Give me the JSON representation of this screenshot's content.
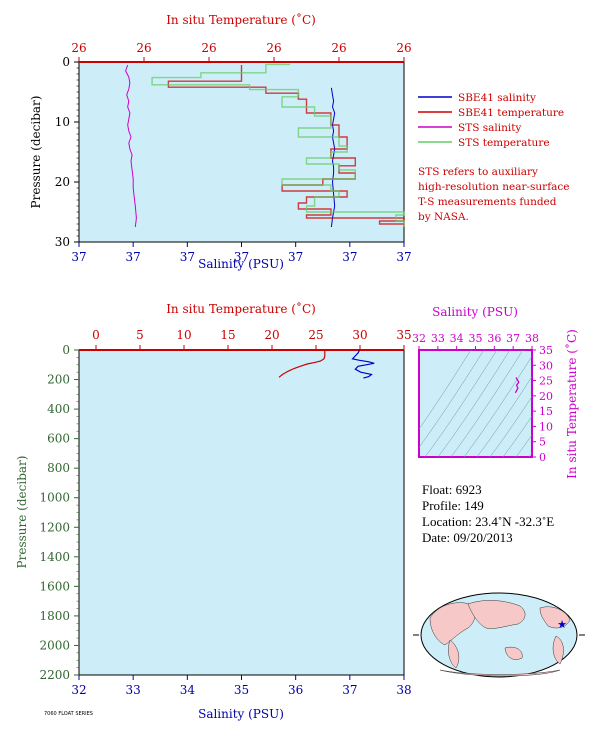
{
  "chart_data": [
    {
      "type": "line",
      "panel": "upper-profile",
      "top_axis": {
        "label": "In situ Temperature (˚C)",
        "ticks": [
          "26",
          "26",
          "26",
          "26",
          "26",
          "26"
        ],
        "range": [
          26.05,
          26.45
        ]
      },
      "bottom_axis": {
        "label": "Salinity (PSU)",
        "ticks": [
          "37",
          "37",
          "37",
          "37",
          "37",
          "37",
          "37"
        ],
        "range": [
          36.95,
          37.25
        ]
      },
      "left_axis": {
        "label": "Pressure (decibar)",
        "ticks": [
          "0",
          "10",
          "20",
          "30"
        ],
        "range": [
          0,
          30
        ],
        "inverted": true
      },
      "legend_placement": "right",
      "series": [
        {
          "name": "SBE41 salinity",
          "color": "#0000cc",
          "axis": "bottom",
          "x": [
            37.183,
            37.184,
            37.185,
            37.184,
            37.186,
            37.185,
            37.184,
            37.185,
            37.184,
            37.185,
            37.186,
            37.185,
            37.184,
            37.185,
            37.185,
            37.184,
            37.185,
            37.186,
            37.184,
            37.183
          ],
          "y": [
            4.3,
            5.5,
            6.5,
            7.5,
            8.5,
            9.5,
            10.5,
            11.5,
            12.5,
            13.5,
            14.5,
            15.5,
            16.5,
            17.5,
            18.5,
            20,
            22,
            24,
            26,
            27.5
          ]
        },
        {
          "name": "SBE41 temperature",
          "color": "#cc0000",
          "axis": "top",
          "x": [
            26.25,
            26.25,
            26.16,
            26.28,
            26.32,
            26.33,
            26.36,
            26.37,
            26.38,
            26.36,
            26.39,
            26.37,
            26.39,
            26.35,
            26.3,
            26.38,
            26.33,
            26.32,
            26.36,
            26.33,
            26.45,
            26.42,
            26.45
          ],
          "y": [
            0.5,
            3.2,
            4.2,
            5.2,
            6.2,
            8.5,
            10.5,
            12.5,
            14.5,
            16,
            17.3,
            18.5,
            19.5,
            20.5,
            21.5,
            22.5,
            23.5,
            24.5,
            25.5,
            26,
            26.5,
            27,
            27.5
          ]
        },
        {
          "name": "STS salinity",
          "color": "#cc00cc",
          "axis": "bottom",
          "x": [
            36.995,
            36.993,
            36.996,
            36.997,
            36.996,
            36.994,
            36.996,
            36.995,
            36.997,
            36.996,
            36.995,
            36.996,
            36.998,
            36.996,
            36.997,
            36.999,
            36.998,
            36.999,
            37.0,
            37.0,
            37.001,
            37.002,
            37.003,
            37.002
          ],
          "y": [
            0.5,
            1.5,
            2.5,
            3.5,
            4.5,
            5.5,
            6.5,
            7.5,
            8.5,
            9.5,
            10.5,
            11.5,
            12.5,
            13.5,
            14.5,
            15.5,
            16.5,
            18,
            19.5,
            21,
            22.5,
            24,
            26,
            27.5
          ]
        },
        {
          "name": "STS temperature",
          "color": "#66cc66",
          "axis": "top",
          "x": [
            26.31,
            26.28,
            26.2,
            26.14,
            26.26,
            26.32,
            26.3,
            26.34,
            26.36,
            26.32,
            26.37,
            26.38,
            26.36,
            26.33,
            26.37,
            26.39,
            26.3,
            26.36,
            26.37,
            26.34,
            26.33,
            26.45,
            26.44,
            26.45
          ],
          "y": [
            0.4,
            1.8,
            2.6,
            3.8,
            4.6,
            5.8,
            7.5,
            9,
            11,
            12.5,
            14,
            15,
            16,
            17,
            18,
            19.5,
            20.5,
            21.5,
            22.5,
            24,
            25,
            25.5,
            26.5,
            27.5
          ]
        }
      ],
      "annotation": [
        "STS refers to auxiliary",
        "high-resolution near-surface",
        "T-S measurements funded",
        "by NASA."
      ]
    },
    {
      "type": "line",
      "panel": "lower-profile",
      "top_axis": {
        "label": "In situ Temperature (˚C)",
        "ticks": [
          "0",
          "5",
          "10",
          "15",
          "20",
          "25",
          "30",
          "35"
        ],
        "range": [
          0,
          35
        ]
      },
      "bottom_axis": {
        "label": "Salinity (PSU)",
        "ticks": [
          "32",
          "33",
          "34",
          "35",
          "36",
          "37",
          "38"
        ],
        "range": [
          32,
          38
        ]
      },
      "left_axis": {
        "label": "Pressure (decibar)",
        "ticks": [
          "0",
          "200",
          "400",
          "600",
          "800",
          "1000",
          "1200",
          "1400",
          "1600",
          "1800",
          "2000",
          "2200"
        ],
        "range": [
          0,
          2200
        ],
        "inverted": true
      },
      "series": [
        {
          "name": "temperature",
          "color": "#cc0000",
          "axis": "top",
          "x": [
            26.0,
            26.0,
            25.9,
            25.5,
            24.8,
            24.0,
            23.2,
            22.5,
            21.8,
            21.2,
            20.8
          ],
          "y": [
            0,
            40,
            60,
            75,
            85,
            95,
            110,
            125,
            145,
            165,
            185
          ]
        },
        {
          "name": "salinity",
          "color": "#0000cc",
          "axis": "bottom",
          "x": [
            37.18,
            37.15,
            37.1,
            37.05,
            37.18,
            37.35,
            37.45,
            37.3,
            37.15,
            37.1,
            37.2,
            37.4,
            37.35,
            37.25
          ],
          "y": [
            0,
            20,
            40,
            60,
            70,
            80,
            90,
            100,
            110,
            130,
            150,
            165,
            180,
            190
          ]
        }
      ]
    },
    {
      "type": "scatter",
      "panel": "ts-diagram",
      "top_axis": {
        "label": "Salinity (PSU)",
        "ticks": [
          "32",
          "33",
          "34",
          "35",
          "36",
          "37",
          "38"
        ],
        "range": [
          32,
          38
        ]
      },
      "right_axis": {
        "label": "In situ Temperature (˚C)",
        "ticks": [
          "0",
          "5",
          "10",
          "15",
          "20",
          "25",
          "30",
          "35"
        ],
        "range": [
          0,
          35
        ]
      },
      "series": [
        {
          "name": "profile",
          "color": "#cc00cc",
          "x": [
            37.12,
            37.25,
            37.18,
            37.3,
            37.2,
            37.15
          ],
          "y": [
            21.0,
            22.5,
            23.5,
            24.5,
            25.5,
            26.0
          ]
        }
      ]
    }
  ],
  "info": {
    "float": "Float:  6923",
    "profile": "Profile:  149",
    "location": "Location:  23.4˚N  -32.3˚E",
    "date": "Date:  09/20/2013"
  },
  "footer_note": "7060 FLOAT SERIES"
}
